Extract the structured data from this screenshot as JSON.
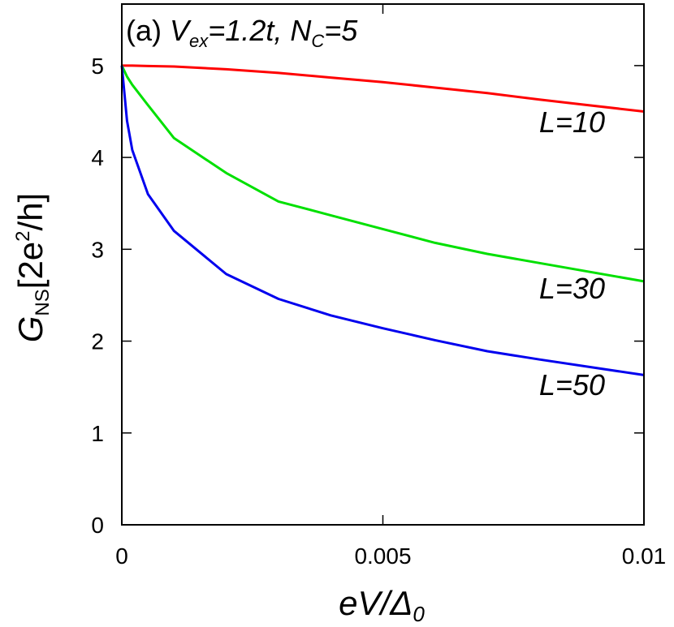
{
  "chart_data": {
    "type": "line",
    "title": [
      "(a) ",
      "V",
      "ex",
      "=1.2t, ",
      "N",
      "C",
      "=5"
    ],
    "x_label": [
      "eV/Δ",
      "0"
    ],
    "y_label": [
      "G",
      "NS",
      "[2e",
      "2",
      "/h]"
    ],
    "x": [
      0,
      0.0001,
      0.0002,
      0.0005,
      0.001,
      0.002,
      0.003,
      0.004,
      0.005,
      0.006,
      0.007,
      0.008,
      0.01
    ],
    "series": [
      {
        "name": "L=10",
        "color": "#ff0000",
        "values": [
          5,
          5,
          5,
          4.995,
          4.99,
          4.96,
          4.92,
          4.87,
          4.82,
          4.76,
          4.7,
          4.63,
          4.5
        ]
      },
      {
        "name": "L=30",
        "color": "#00e000",
        "values": [
          5,
          4.88,
          4.79,
          4.57,
          4.21,
          3.83,
          3.52,
          3.37,
          3.22,
          3.07,
          2.95,
          2.85,
          2.65
        ]
      },
      {
        "name": "L=50",
        "color": "#0000ee",
        "values": [
          5,
          4.4,
          4.08,
          3.6,
          3.2,
          2.73,
          2.46,
          2.28,
          2.14,
          2.01,
          1.89,
          1.8,
          1.63
        ]
      }
    ],
    "xlim": [
      0,
      0.01
    ],
    "ylim": [
      0,
      5.67
    ],
    "xticks": [
      0,
      0.005,
      0.01
    ],
    "yticks": [
      0,
      1,
      2,
      3,
      4,
      5
    ]
  }
}
